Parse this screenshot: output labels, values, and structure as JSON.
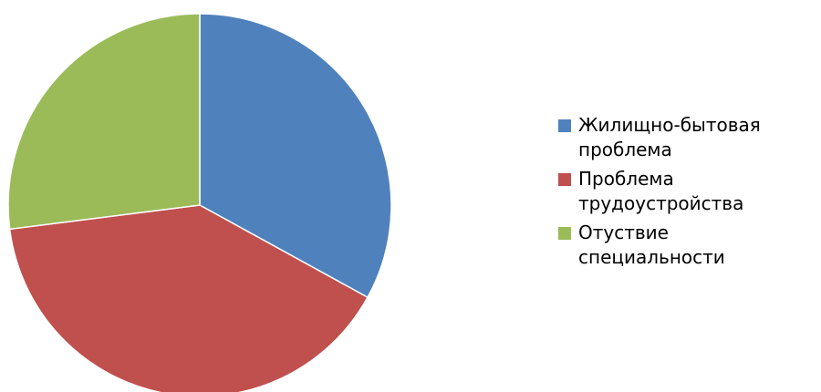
{
  "chart_data": {
    "type": "pie",
    "title": "",
    "legend_position": "right",
    "start_angle": "top",
    "direction": "clockwise",
    "categories": [
      "Жилищно-бытовая проблема",
      "Проблема трудоустройства",
      "Отуствие специальности"
    ],
    "values": [
      33,
      40,
      27
    ],
    "colors": [
      "#4F81BD",
      "#C0504D",
      "#9BBB59"
    ],
    "slice_border_color": "#FFFFFF"
  }
}
